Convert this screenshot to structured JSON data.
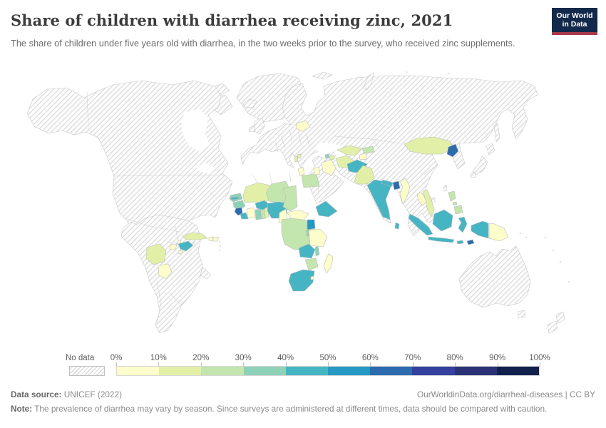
{
  "header": {
    "title": "Share of children with diarrhea receiving zinc, 2021",
    "subtitle": "The share of children under five years old with diarrhea, in the two weeks prior to the survey, who received zinc supplements.",
    "logo": {
      "line1": "Our World",
      "line2": "in Data",
      "bg_color": "#12294b",
      "accent_color": "#a7394a"
    }
  },
  "legend": {
    "no_data_label": "No data",
    "tick_labels": [
      "0%",
      "10%",
      "20%",
      "30%",
      "40%",
      "50%",
      "60%",
      "70%",
      "80%",
      "90%",
      "100%"
    ],
    "bin_colors": [
      "#fdfccb",
      "#e2f0a7",
      "#c3e5ae",
      "#8dd1b8",
      "#46b5c3",
      "#2598c3",
      "#2c6cae",
      "#343f9f",
      "#2a3275",
      "#12204e"
    ]
  },
  "footer": {
    "source_label": "Data source:",
    "source_value": " UNICEF (2022)",
    "url_text": "OurWorldinData.org/diarrheal-diseases | CC BY",
    "note_label": "Note:",
    "note_text": " The prevalence of diarrhea may vary by season. Since surveys are administered at different times, data should be compared with caution."
  },
  "chart_data": {
    "type": "choropleth-map",
    "title": "Share of children with diarrhea receiving zinc, 2021",
    "unit": "% of children under five with diarrhea who received zinc supplements",
    "year": 2021,
    "projection": "world",
    "no_data_style": "diagonal-hatch",
    "color_scale": {
      "bins": [
        "0-10",
        "10-20",
        "20-30",
        "30-40",
        "40-50",
        "50-60",
        "60-70",
        "70-80",
        "80-90",
        "90-100"
      ],
      "colors": [
        "#fdfccb",
        "#e2f0a7",
        "#c3e5ae",
        "#8dd1b8",
        "#46b5c3",
        "#2598c3",
        "#2c6cae",
        "#343f9f",
        "#2a3275",
        "#12204e"
      ]
    },
    "countries": [
      {
        "name": "Guatemala",
        "value_range_pct": "0-10"
      },
      {
        "name": "Belize",
        "value_range_pct": "0-10"
      },
      {
        "name": "Honduras",
        "value_range_pct": "40-50"
      },
      {
        "name": "El Salvador",
        "value_range_pct": "0-10"
      },
      {
        "name": "Cuba",
        "value_range_pct": "10-20"
      },
      {
        "name": "Haiti",
        "value_range_pct": "0-10"
      },
      {
        "name": "Dominican Republic",
        "value_range_pct": "0-10"
      },
      {
        "name": "Bolivia",
        "value_range_pct": "10-20"
      },
      {
        "name": "Paraguay",
        "value_range_pct": "0-10"
      },
      {
        "name": "Belarus",
        "value_range_pct": "0-10"
      },
      {
        "name": "Albania",
        "value_range_pct": "10-20"
      },
      {
        "name": "North Macedonia",
        "value_range_pct": "10-20"
      },
      {
        "name": "Tunisia",
        "value_range_pct": "0-10"
      },
      {
        "name": "Egypt",
        "value_range_pct": "20-30"
      },
      {
        "name": "Iraq",
        "value_range_pct": "0-10"
      },
      {
        "name": "Jordan",
        "value_range_pct": "0-10"
      },
      {
        "name": "Armenia",
        "value_range_pct": "30-40"
      },
      {
        "name": "Azerbaijan",
        "value_range_pct": "10-20"
      },
      {
        "name": "Turkmenistan",
        "value_range_pct": "10-20"
      },
      {
        "name": "Uzbekistan",
        "value_range_pct": "10-20"
      },
      {
        "name": "Tajikistan",
        "value_range_pct": "0-10"
      },
      {
        "name": "Kyrgyzstan",
        "value_range_pct": "20-30"
      },
      {
        "name": "Afghanistan",
        "value_range_pct": "40-50"
      },
      {
        "name": "Pakistan",
        "value_range_pct": "10-20"
      },
      {
        "name": "India",
        "value_range_pct": "40-50"
      },
      {
        "name": "Nepal",
        "value_range_pct": "40-50"
      },
      {
        "name": "Bangladesh",
        "value_range_pct": "60-70"
      },
      {
        "name": "Sri Lanka",
        "value_range_pct": "40-50"
      },
      {
        "name": "Myanmar",
        "value_range_pct": "0-10"
      },
      {
        "name": "Mongolia",
        "value_range_pct": "10-20"
      },
      {
        "name": "North Korea",
        "value_range_pct": "60-70"
      },
      {
        "name": "Laos",
        "value_range_pct": "0-10"
      },
      {
        "name": "Vietnam",
        "value_range_pct": "10-20"
      },
      {
        "name": "Philippines",
        "value_range_pct": "20-30"
      },
      {
        "name": "Indonesia",
        "value_range_pct": "40-50"
      },
      {
        "name": "Timor-Leste",
        "value_range_pct": "60-70"
      },
      {
        "name": "Papua New Guinea",
        "value_range_pct": "0-10"
      },
      {
        "name": "Senegal",
        "value_range_pct": "30-40"
      },
      {
        "name": "Gambia",
        "value_range_pct": "40-50"
      },
      {
        "name": "Guinea",
        "value_range_pct": "30-40"
      },
      {
        "name": "Sierra Leone",
        "value_range_pct": "60-70"
      },
      {
        "name": "Liberia",
        "value_range_pct": "40-50"
      },
      {
        "name": "Cote d'Ivoire",
        "value_range_pct": "0-10"
      },
      {
        "name": "Mali",
        "value_range_pct": "10-20"
      },
      {
        "name": "Burkina Faso",
        "value_range_pct": "40-50"
      },
      {
        "name": "Ghana",
        "value_range_pct": "30-40"
      },
      {
        "name": "Togo",
        "value_range_pct": "20-30"
      },
      {
        "name": "Benin",
        "value_range_pct": "10-20"
      },
      {
        "name": "Niger",
        "value_range_pct": "20-30"
      },
      {
        "name": "Nigeria",
        "value_range_pct": "40-50"
      },
      {
        "name": "Cameroon",
        "value_range_pct": "0-10"
      },
      {
        "name": "Central African Republic",
        "value_range_pct": "0-10"
      },
      {
        "name": "Chad",
        "value_range_pct": "20-30"
      },
      {
        "name": "Ethiopia",
        "value_range_pct": "40-50"
      },
      {
        "name": "Uganda",
        "value_range_pct": "50-60"
      },
      {
        "name": "Rwanda",
        "value_range_pct": "30-40"
      },
      {
        "name": "Burundi",
        "value_range_pct": "30-40"
      },
      {
        "name": "Tanzania",
        "value_range_pct": "0-10"
      },
      {
        "name": "Democratic Republic of Congo",
        "value_range_pct": "20-30"
      },
      {
        "name": "Zambia",
        "value_range_pct": "40-50"
      },
      {
        "name": "Malawi",
        "value_range_pct": "30-40"
      },
      {
        "name": "Zimbabwe",
        "value_range_pct": "20-30"
      },
      {
        "name": "South Africa",
        "value_range_pct": "40-50"
      },
      {
        "name": "Eswatini",
        "value_range_pct": "0-10"
      },
      {
        "name": "Madagascar",
        "value_range_pct": "0-10"
      }
    ]
  }
}
